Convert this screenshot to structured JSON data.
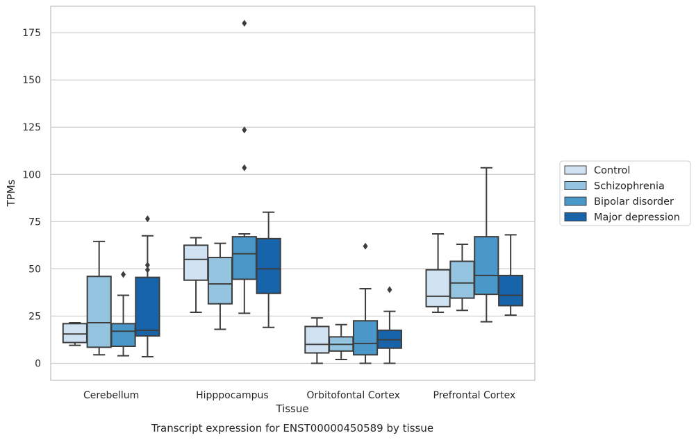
{
  "caption": "Transcript expression for ENST00000450589 by tissue",
  "chart_data": {
    "type": "box",
    "xlabel": "Tissue",
    "ylabel": "TPMs",
    "ylim": [
      -9,
      189
    ],
    "yticks": [
      0,
      25,
      50,
      75,
      100,
      125,
      150,
      175
    ],
    "grid": "horizontal",
    "legend_position": "right",
    "categories": [
      "Cerebellum",
      "Hipppocampus",
      "Orbitofontal Cortex",
      "Prefrontal Cortex"
    ],
    "series": [
      {
        "name": "Control",
        "color": "#d0e1f2",
        "boxes": [
          {
            "whislo": 9.5,
            "q1": 11,
            "median": 15.5,
            "q3": 21,
            "whishi": 21.5,
            "fliers": []
          },
          {
            "whislo": 27,
            "q1": 44,
            "median": 55,
            "q3": 62.5,
            "whishi": 66.5,
            "fliers": []
          },
          {
            "whislo": 0,
            "q1": 5.5,
            "median": 10,
            "q3": 19.5,
            "whishi": 24,
            "fliers": []
          },
          {
            "whislo": 27,
            "q1": 30,
            "median": 35.5,
            "q3": 49.5,
            "whishi": 68.5,
            "fliers": []
          }
        ]
      },
      {
        "name": "Schizophrenia",
        "color": "#94c4df",
        "boxes": [
          {
            "whislo": 4.5,
            "q1": 8.5,
            "median": 21.5,
            "q3": 46,
            "whishi": 64.5,
            "fliers": []
          },
          {
            "whislo": 18,
            "q1": 31.5,
            "median": 42,
            "q3": 56,
            "whishi": 63.5,
            "fliers": []
          },
          {
            "whislo": 2,
            "q1": 6.5,
            "median": 10,
            "q3": 14,
            "whishi": 20.5,
            "fliers": []
          },
          {
            "whislo": 28,
            "q1": 34.5,
            "median": 42.5,
            "q3": 54,
            "whishi": 63,
            "fliers": []
          }
        ]
      },
      {
        "name": "Bipolar disorder",
        "color": "#4a98c9",
        "boxes": [
          {
            "whislo": 4,
            "q1": 9,
            "median": 17,
            "q3": 21,
            "whishi": 36,
            "fliers": [
              47
            ]
          },
          {
            "whislo": 26.5,
            "q1": 44.5,
            "median": 58,
            "q3": 67,
            "whishi": 68.5,
            "fliers": [
              103.5,
              123.5,
              180
            ]
          },
          {
            "whislo": 0,
            "q1": 4.5,
            "median": 10.5,
            "q3": 22.5,
            "whishi": 39.5,
            "fliers": [
              62
            ]
          },
          {
            "whislo": 22,
            "q1": 36.5,
            "median": 46.5,
            "q3": 67,
            "whishi": 103.5,
            "fliers": []
          }
        ]
      },
      {
        "name": "Major depression",
        "color": "#1764ab",
        "boxes": [
          {
            "whislo": 3.5,
            "q1": 14.5,
            "median": 17.5,
            "q3": 45.5,
            "whishi": 67.5,
            "fliers": [
              49.5,
              52,
              76.5
            ]
          },
          {
            "whislo": 19,
            "q1": 37,
            "median": 50,
            "q3": 66,
            "whishi": 80,
            "fliers": []
          },
          {
            "whislo": 0,
            "q1": 8,
            "median": 12.5,
            "q3": 17.5,
            "whishi": 27.5,
            "fliers": [
              39
            ]
          },
          {
            "whislo": 25.5,
            "q1": 30.5,
            "median": 36,
            "q3": 46.5,
            "whishi": 68,
            "fliers": []
          }
        ]
      }
    ]
  }
}
